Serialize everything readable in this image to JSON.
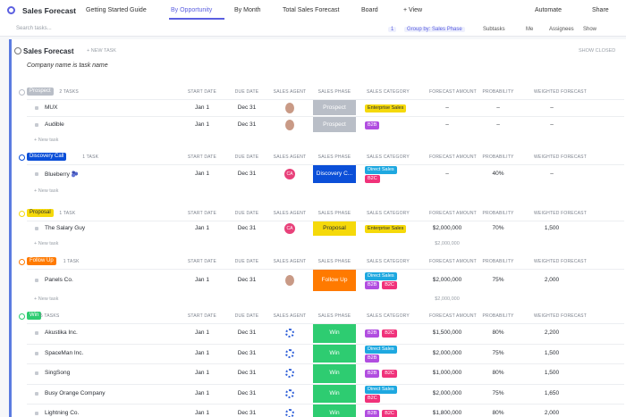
{
  "header": {
    "title": "Sales Forecast",
    "tabs": [
      "Getting Started Guide",
      "By Opportunity",
      "By Month",
      "Total Sales Forecast",
      "Board",
      "+ View"
    ],
    "actions": [
      "Automate",
      "Share"
    ]
  },
  "toolbar": {
    "search": "Search tasks...",
    "items": [
      "1",
      "Group by: Sales Phase",
      "Subtasks",
      "Me",
      "Assignees",
      "Show"
    ]
  },
  "list": {
    "title": "Sales Forecast",
    "new_task": "+ NEW TASK",
    "show_closed": "SHOW CLOSED",
    "description": "Company name is task name",
    "columns": [
      "START DATE",
      "DUE DATE",
      "SALES AGENT",
      "SALES PHASE",
      "SALES CATEGORY",
      "FORECAST AMOUNT",
      "PROBABILITY",
      "WEIGHTED FORECAST"
    ],
    "add_task": "+ New task",
    "groups": [
      {
        "name": "Prospect",
        "count": "2 TASKS",
        "color": "#b9bec7",
        "tasks": [
          {
            "name": "MUX",
            "start": "Jan 1",
            "due": "Dec 31",
            "phase": "Prospect",
            "categories": [
              "Enterprise Sales"
            ],
            "amount": "–",
            "probability": "–",
            "weighted": "–"
          },
          {
            "name": "Audible",
            "start": "Jan 1",
            "due": "Dec 31",
            "phase": "Prospect",
            "categories": [
              "B2B"
            ],
            "amount": "–",
            "probability": "–",
            "weighted": "–"
          }
        ]
      },
      {
        "name": "Discovery Call",
        "count": "1 TASK",
        "color": "#0b4fd8",
        "tasks": [
          {
            "name": "Blueberry 🫐",
            "start": "Jan 1",
            "due": "Dec 31",
            "agent": "CA",
            "phase": "Discovery C...",
            "categories": [
              "Direct Sales",
              "B2C"
            ],
            "amount": "–",
            "probability": "40%",
            "weighted": "–"
          }
        ]
      },
      {
        "name": "Proposal",
        "count": "1 TASK",
        "color": "#f5d90a",
        "tasks": [
          {
            "name": "The Salary Guy",
            "start": "Jan 1",
            "due": "Dec 31",
            "agent": "CA",
            "phase": "Proposal",
            "categories": [
              "Enterprise Sales"
            ],
            "amount": "$2,000,000",
            "probability": "70%",
            "weighted": "1,500"
          }
        ],
        "total": "$2,000,000"
      },
      {
        "name": "Follow Up",
        "count": "1 TASK",
        "color": "#ff7a00",
        "tasks": [
          {
            "name": "Panels Co.",
            "start": "Jan 1",
            "due": "Dec 31",
            "phase": "Follow Up",
            "categories": [
              "Direct Sales",
              "B2B",
              "B2C"
            ],
            "amount": "$2,000,000",
            "probability": "75%",
            "weighted": "2,000"
          }
        ],
        "total": "$2,000,000"
      },
      {
        "name": "Win",
        "count": "5 TASKS",
        "color": "#2ecc71",
        "tasks": [
          {
            "name": "Akustika Inc.",
            "start": "Jan 1",
            "due": "Dec 31",
            "phase": "Win",
            "categories": [
              "B2B",
              "B2C"
            ],
            "amount": "$1,500,000",
            "probability": "80%",
            "weighted": "2,200"
          },
          {
            "name": "SpaceMan Inc.",
            "start": "Jan 1",
            "due": "Dec 31",
            "phase": "Win",
            "categories": [
              "Direct Sales",
              "B2B"
            ],
            "amount": "$2,000,000",
            "probability": "75%",
            "weighted": "1,500"
          },
          {
            "name": "SingSong",
            "start": "Jan 1",
            "due": "Dec 31",
            "phase": "Win",
            "categories": [
              "B2B",
              "B2C"
            ],
            "amount": "$1,000,000",
            "probability": "80%",
            "weighted": "1,500"
          },
          {
            "name": "Busy Orange Company",
            "start": "Jan 1",
            "due": "Dec 31",
            "phase": "Win",
            "categories": [
              "Direct Sales",
              "B2C"
            ],
            "amount": "$2,000,000",
            "probability": "75%",
            "weighted": "1,650"
          },
          {
            "name": "Lightning Co.",
            "start": "Jan 1",
            "due": "Dec 31",
            "phase": "Win",
            "categories": [
              "B2B",
              "B2C"
            ],
            "amount": "$1,800,000",
            "probability": "80%",
            "weighted": "2,000"
          }
        ]
      }
    ]
  }
}
